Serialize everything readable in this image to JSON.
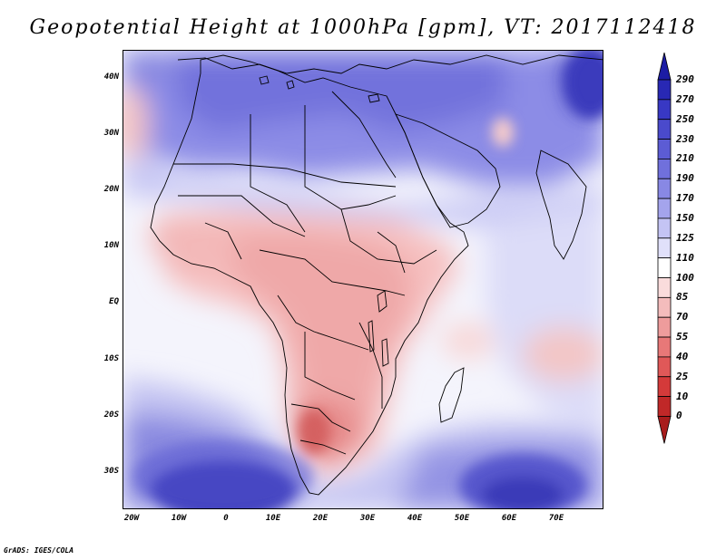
{
  "title": "Geopotential Height at 1000hPa [gpm], VT: 2017112418",
  "footer": "GrADS: IGES/COLA",
  "map": {
    "latitude_labels": [
      "40N",
      "30N",
      "20N",
      "10N",
      "EQ",
      "10S",
      "20S",
      "30S"
    ],
    "longitude_labels": [
      "20W",
      "10W",
      "0",
      "10E",
      "20E",
      "30E",
      "40E",
      "50E",
      "60E",
      "70E"
    ]
  },
  "colorbar": {
    "levels": [
      "290",
      "270",
      "250",
      "230",
      "210",
      "190",
      "170",
      "150",
      "125",
      "110",
      "100",
      "85",
      "70",
      "55",
      "40",
      "25",
      "10",
      "0"
    ],
    "colors": [
      "#1c1ca4",
      "#2828b4",
      "#3838c4",
      "#4a4acc",
      "#5c5cd4",
      "#7070dc",
      "#8888e4",
      "#a4a4ec",
      "#c4c4f4",
      "#e0e0fa",
      "#ffffff",
      "#fadcdc",
      "#f4bcbc",
      "#ee9c9c",
      "#e87878",
      "#e05858",
      "#d43a3a",
      "#c02828",
      "#a81c1c"
    ]
  }
}
